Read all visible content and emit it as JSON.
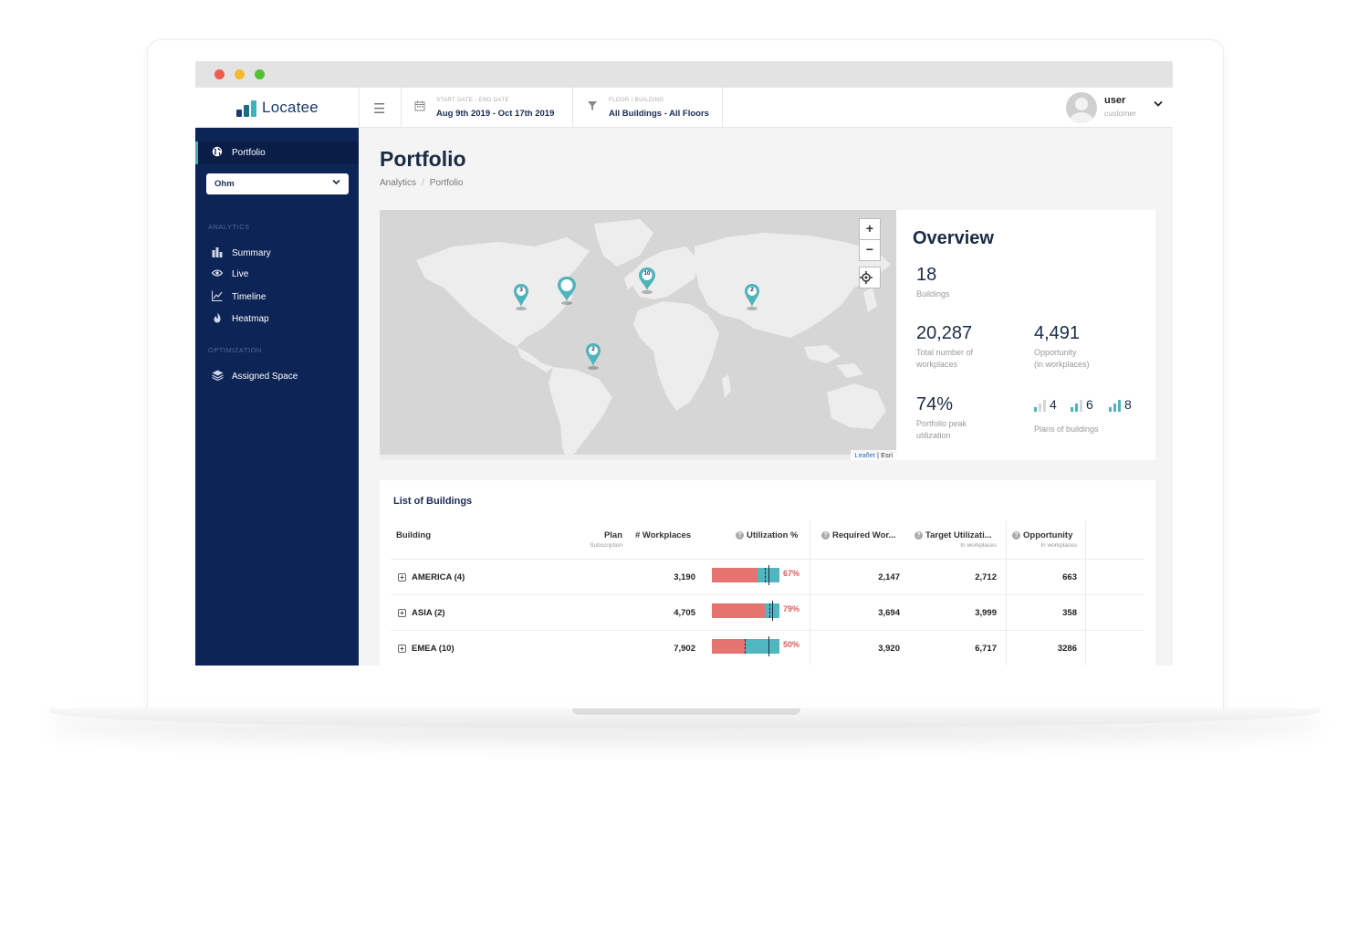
{
  "app": {
    "name": "Locatee"
  },
  "header": {
    "date_label": "START DATE - END DATE",
    "date_value": "Aug 9th 2019 - Oct 17th 2019",
    "floor_label": "FLOOR / BUILDING",
    "floor_value": "All Buildings - All Floors",
    "user_name": "user",
    "user_role": "customer"
  },
  "sidebar": {
    "active": "Portfolio",
    "select_value": "Ohm",
    "section_analytics": "ANALYTICS",
    "section_optimization": "OPTIMIZATION",
    "analytics_items": [
      "Summary",
      "Live",
      "Timeline",
      "Heatmap"
    ],
    "optimization_items": [
      "Assigned Space"
    ]
  },
  "page": {
    "title": "Portfolio",
    "breadcrumb": [
      "Analytics",
      "Portfolio"
    ]
  },
  "map": {
    "zoom_in": "+",
    "zoom_out": "−",
    "markers": [
      "3",
      "",
      "10",
      "2",
      "2"
    ],
    "attribution_link": "Leaflet",
    "attribution_sep": " | ",
    "attribution_source": "Esri"
  },
  "overview": {
    "title": "Overview",
    "buildings_value": "18",
    "buildings_label": "Buildings",
    "workplaces_value": "20,287",
    "workplaces_label_1": "Total number of",
    "workplaces_label_2": "workplaces",
    "opportunity_value": "4,491",
    "opportunity_label_1": "Opportunity",
    "opportunity_label_2": "(in workplaces)",
    "peak_value": "74%",
    "peak_label_1": "Portfolio peak",
    "peak_label_2": "utilization",
    "plans": [
      "4",
      "6",
      "8"
    ],
    "plans_label": "Plans of buildings"
  },
  "buildings": {
    "title": "List of Buildings",
    "columns": {
      "building": "Building",
      "plan": "Plan",
      "plan_sub": "Subscription",
      "workplaces": "# Workplaces",
      "utilization": "Utilization %",
      "required": "Required Wor...",
      "target": "Target Utilizati...",
      "target_sub": "In workplaces",
      "opportunity": "Opportunity",
      "opportunity_sub": "In workplaces"
    },
    "rows": [
      {
        "name": "AMERICA (4)",
        "workplaces": "3,190",
        "utilization_pct": "67%",
        "utilization": 67,
        "required": "2,147",
        "target": "2,712",
        "opportunity": "663"
      },
      {
        "name": "ASIA (2)",
        "workplaces": "4,705",
        "utilization_pct": "79%",
        "utilization": 79,
        "required": "3,694",
        "target": "3,999",
        "opportunity": "358"
      },
      {
        "name": "EMEA (10)",
        "workplaces": "7,902",
        "utilization_pct": "50%",
        "utilization": 50,
        "required": "3,920",
        "target": "6,717",
        "opportunity": "3286"
      }
    ]
  },
  "colors": {
    "sidebar": "#0d2456",
    "accent": "#3fb1b9",
    "utilization_fill": "#e57470",
    "utilization_rest": "#50b6c0"
  }
}
